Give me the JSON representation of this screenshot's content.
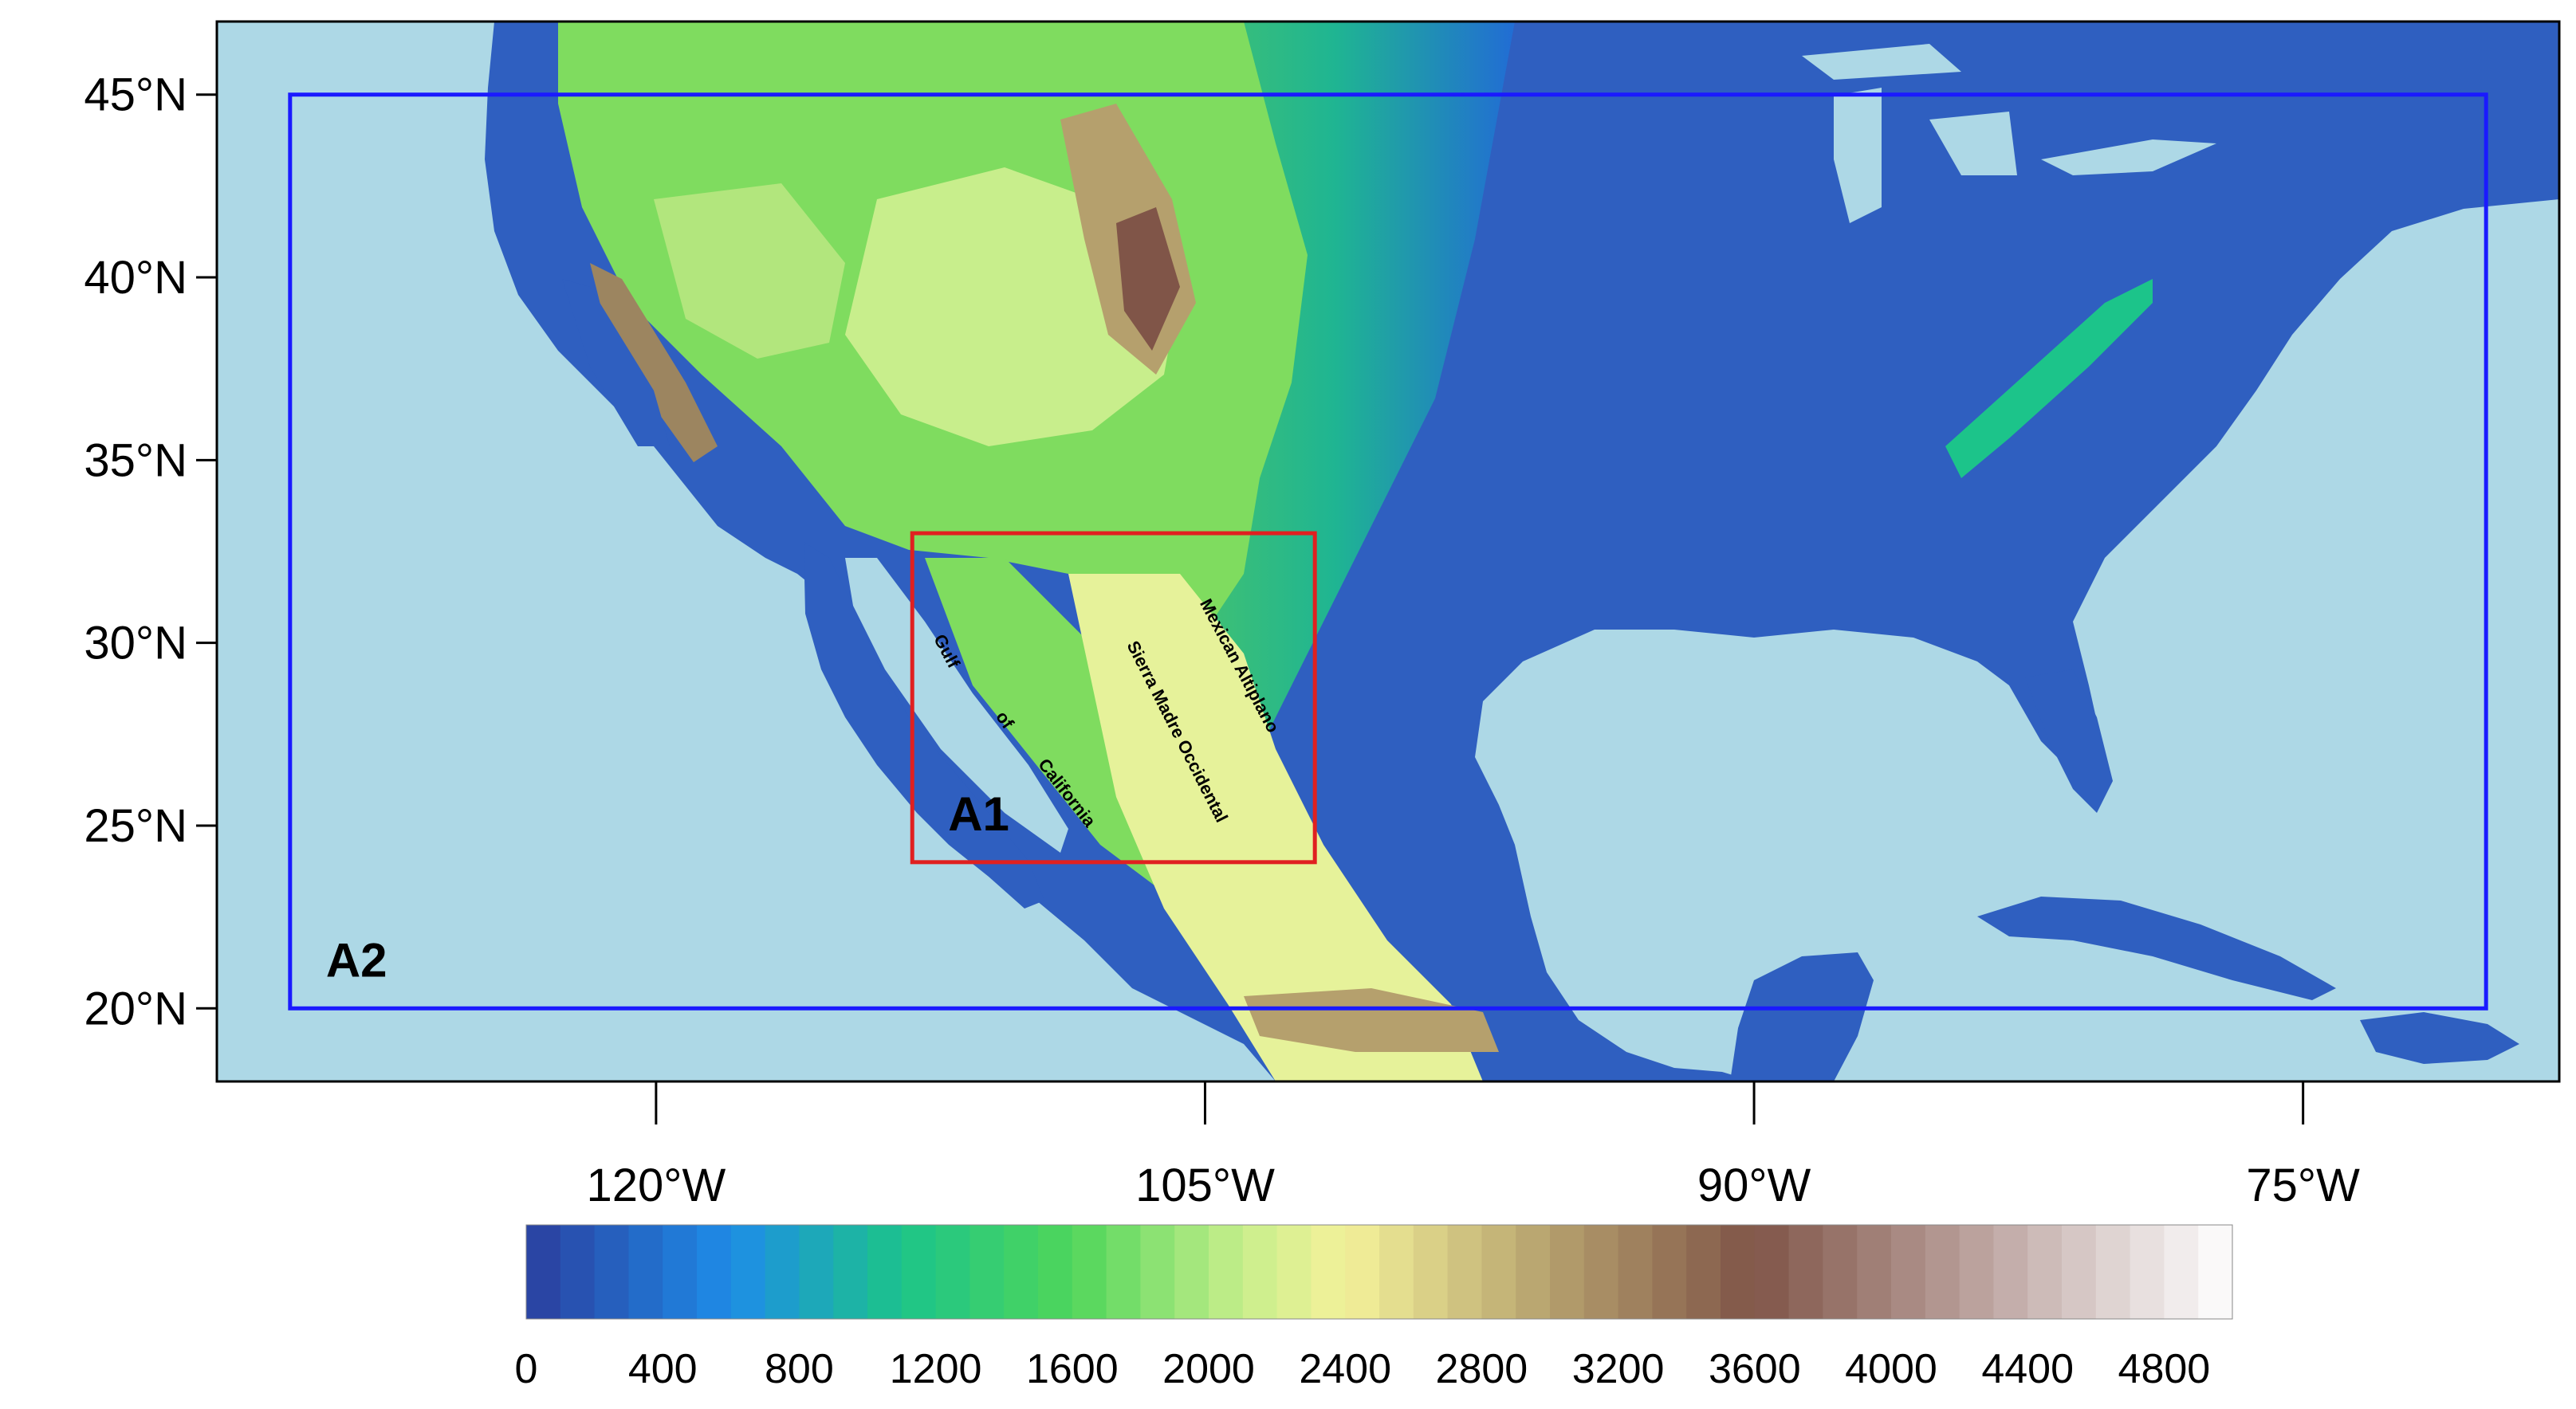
{
  "map": {
    "lat_ticks": [
      {
        "lat": 45,
        "label": "45°N"
      },
      {
        "lat": 40,
        "label": "40°N"
      },
      {
        "lat": 35,
        "label": "35°N"
      },
      {
        "lat": 30,
        "label": "30°N"
      },
      {
        "lat": 25,
        "label": "25°N"
      },
      {
        "lat": 20,
        "label": "20°N"
      }
    ],
    "lon_ticks": [
      {
        "lon": -120,
        "label": "120°W"
      },
      {
        "lon": -105,
        "label": "105°W"
      },
      {
        "lon": -90,
        "label": "90°W"
      },
      {
        "lon": -75,
        "label": "75°W"
      }
    ],
    "extent": {
      "lon_min": -132,
      "lon_max": -68,
      "lat_min": 18,
      "lat_max": 47
    },
    "ocean_color": "#add8e6",
    "domains": [
      {
        "id": "A1",
        "label": "A1",
        "lon_min": -113,
        "lon_max": -102,
        "lat_min": 24,
        "lat_max": 33,
        "color": "#e02020"
      },
      {
        "id": "A2",
        "label": "A2",
        "lon_min": -130,
        "lon_max": -70,
        "lat_min": 20,
        "lat_max": 45,
        "color": "#1a1aff"
      }
    ],
    "annotations": [
      {
        "text": "Gulf",
        "lon": -112.2,
        "lat": 29.7,
        "rotate": 62
      },
      {
        "text": "of",
        "lon": -110.6,
        "lat": 27.8,
        "rotate": 55
      },
      {
        "text": "California",
        "lon": -108.9,
        "lat": 25.8,
        "rotate": 52
      },
      {
        "text": "Sierra Madre Occidental",
        "lon": -105.9,
        "lat": 27.5,
        "rotate": 63
      },
      {
        "text": "Mexican Altiplano",
        "lon": -104.2,
        "lat": 29.3,
        "rotate": 62
      }
    ]
  },
  "colorbar": {
    "tick_labels": [
      "0",
      "400",
      "800",
      "1200",
      "1600",
      "2000",
      "2400",
      "2800",
      "3200",
      "3600",
      "4000",
      "4400",
      "4800"
    ],
    "min": 0,
    "max": 5000,
    "step": 100,
    "color_stops": [
      {
        "value": 0,
        "color": "#2b3f9e"
      },
      {
        "value": 600,
        "color": "#1e8ce8"
      },
      {
        "value": 1100,
        "color": "#1cc48a"
      },
      {
        "value": 1600,
        "color": "#4fd65a"
      },
      {
        "value": 2100,
        "color": "#c8ee8c"
      },
      {
        "value": 2400,
        "color": "#f4f29a"
      },
      {
        "value": 3000,
        "color": "#b5a06d"
      },
      {
        "value": 3600,
        "color": "#805548"
      },
      {
        "value": 4300,
        "color": "#bfa8a4"
      },
      {
        "value": 5000,
        "color": "#ffffff"
      }
    ]
  },
  "chart_data": {
    "type": "heatmap",
    "title": "",
    "xlabel": "",
    "ylabel": "",
    "x_ticks": [
      "120°W",
      "105°W",
      "90°W",
      "75°W"
    ],
    "y_ticks": [
      "45°N",
      "40°N",
      "35°N",
      "30°N",
      "25°N",
      "20°N"
    ],
    "xlim": [
      -132,
      -68
    ],
    "ylim": [
      18,
      47
    ],
    "colorbar_range": [
      0,
      5000
    ],
    "colorbar_ticks": [
      0,
      400,
      800,
      1200,
      1600,
      2000,
      2400,
      2800,
      3200,
      3600,
      4000,
      4400,
      4800
    ],
    "boxes": [
      {
        "label": "A1",
        "lon": [
          -113,
          -102
        ],
        "lat": [
          24,
          33
        ]
      },
      {
        "label": "A2",
        "lon": [
          -130,
          -70
        ],
        "lat": [
          20,
          45
        ]
      }
    ],
    "grid": false,
    "legend": "bottom"
  }
}
